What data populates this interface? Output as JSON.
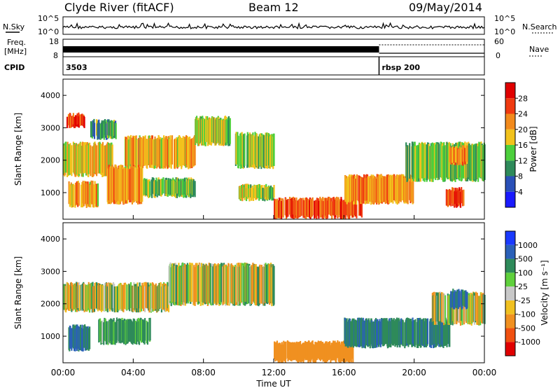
{
  "header": {
    "station": "Clyde River (fitACF)",
    "beam": "Beam 12",
    "date": "09/May/2014"
  },
  "noise_panel": {
    "left_label": "N.Sky",
    "right_label": "N.Search",
    "tick_top": "10^5",
    "tick_bottom": "10^0"
  },
  "freq_panel": {
    "left_label_1": "Freq.",
    "left_label_2": "[MHz]",
    "right_label": "Nave",
    "left_ticks": [
      "18",
      "8"
    ],
    "right_ticks": [
      "60",
      "0"
    ]
  },
  "cpid_panel": {
    "label": "CPID",
    "segments": [
      {
        "label": "3503",
        "start_hour": 0
      },
      {
        "label": "rbsp 200",
        "start_hour": 18.0
      }
    ]
  },
  "x_axis": {
    "label": "Time UT",
    "ticks": [
      "00:00",
      "04:00",
      "08:00",
      "12:00",
      "16:00",
      "20:00",
      "00:00"
    ],
    "range_hours": [
      0,
      24
    ]
  },
  "power_panel": {
    "ylabel": "Slant Range [km]",
    "yticks": [
      "1000",
      "2000",
      "3000",
      "4000"
    ],
    "colorbar_title": "Power [dB]",
    "colorbar_ticks": [
      "4",
      "8",
      "12",
      "16",
      "20",
      "24",
      "28"
    ],
    "colorbar_colors": [
      "#1a1aff",
      "#2a50b8",
      "#2e8a5a",
      "#4ccf3c",
      "#f2c21c",
      "#f28a1c",
      "#f03a10",
      "#e00000"
    ]
  },
  "velocity_panel": {
    "ylabel": "Slant Range [km]",
    "yticks": [
      "1000",
      "2000",
      "3000",
      "4000"
    ],
    "colorbar_title": "Velocity [m s⁻¹]",
    "colorbar_ticks": [
      "1000",
      "500",
      "100",
      "25",
      "-25",
      "-100",
      "-500",
      "-1000"
    ],
    "colorbar_colors": [
      "#1a3aff",
      "#2a60b8",
      "#2e8a5a",
      "#5fd03c",
      "#c8c8c8",
      "#f0c020",
      "#f09020",
      "#f05010",
      "#e00000"
    ]
  },
  "chart_data": {
    "type": "heatmap",
    "x_unit": "hours UT",
    "y_unit": "slant range km",
    "xlim": [
      0,
      24
    ],
    "ylim": [
      180,
      4500
    ],
    "power_regions": [
      {
        "t0": 0.2,
        "t1": 1.2,
        "r0": 3050,
        "r1": 3400,
        "db": 26
      },
      {
        "t0": 0.0,
        "t1": 2.8,
        "r0": 1550,
        "r1": 2500,
        "db": 18
      },
      {
        "t0": 0.3,
        "t1": 2.0,
        "r0": 600,
        "r1": 1300,
        "db": 20
      },
      {
        "t0": 1.5,
        "t1": 3.0,
        "r0": 2700,
        "r1": 3200,
        "db": 12
      },
      {
        "t0": 2.5,
        "t1": 4.5,
        "r0": 700,
        "r1": 1800,
        "db": 22
      },
      {
        "t0": 3.5,
        "t1": 7.5,
        "r0": 1800,
        "r1": 2700,
        "db": 20
      },
      {
        "t0": 4.5,
        "t1": 7.5,
        "r0": 900,
        "r1": 1400,
        "db": 14
      },
      {
        "t0": 7.5,
        "t1": 9.5,
        "r0": 2500,
        "r1": 3300,
        "db": 16
      },
      {
        "t0": 9.8,
        "t1": 12.0,
        "r0": 1800,
        "r1": 2800,
        "db": 15
      },
      {
        "t0": 10.0,
        "t1": 12.0,
        "r0": 800,
        "r1": 1200,
        "db": 16
      },
      {
        "t0": 12.0,
        "t1": 17.0,
        "r0": 250,
        "r1": 800,
        "db": 25
      },
      {
        "t0": 16.0,
        "t1": 20.0,
        "r0": 700,
        "r1": 1500,
        "db": 22
      },
      {
        "t0": 19.5,
        "t1": 24.0,
        "r0": 1400,
        "r1": 2500,
        "db": 14
      },
      {
        "t0": 21.8,
        "t1": 22.8,
        "r0": 600,
        "r1": 1100,
        "db": 26
      },
      {
        "t0": 22.0,
        "t1": 23.0,
        "r0": 1900,
        "r1": 2400,
        "db": 22
      }
    ],
    "velocity_regions": [
      {
        "t0": 0.0,
        "t1": 6.0,
        "r0": 1800,
        "r1": 2600,
        "v": 0
      },
      {
        "t0": 0.3,
        "t1": 1.5,
        "r0": 600,
        "r1": 1300,
        "v": 500
      },
      {
        "t0": 2.0,
        "t1": 5.0,
        "r0": 800,
        "r1": 1500,
        "v": 200
      },
      {
        "t0": 6.0,
        "t1": 12.0,
        "r0": 2000,
        "r1": 3200,
        "v": 0
      },
      {
        "t0": 12.0,
        "t1": 16.5,
        "r0": 250,
        "r1": 800,
        "v": -300
      },
      {
        "t0": 16.0,
        "t1": 22.0,
        "r0": 700,
        "r1": 1500,
        "v": 400
      },
      {
        "t0": 21.0,
        "t1": 24.0,
        "r0": 1400,
        "r1": 2300,
        "v": 0
      },
      {
        "t0": 22.0,
        "t1": 23.0,
        "r0": 1900,
        "r1": 2400,
        "v": 600
      }
    ]
  }
}
